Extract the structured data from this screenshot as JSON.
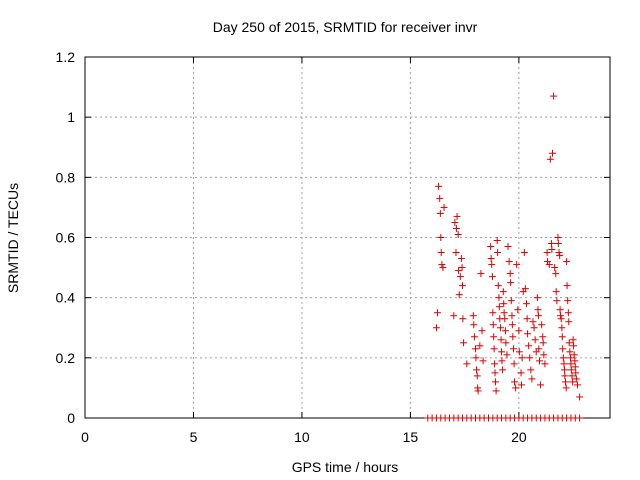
{
  "chart_data": {
    "type": "scatter",
    "title": "Day 250 of 2015, SRMTID for receiver invr",
    "xlabel": "GPS time / hours",
    "ylabel": "SRMTID / TECUs",
    "xlim": [
      0,
      24.2
    ],
    "ylim": [
      0,
      1.2
    ],
    "xticks": [
      0,
      5,
      10,
      15,
      20
    ],
    "yticks": [
      0,
      0.2,
      0.4,
      0.6,
      0.8,
      1.0,
      1.2
    ],
    "xtick_labels": [
      "0",
      "5",
      "10",
      "15",
      "20"
    ],
    "ytick_labels": [
      "0",
      "0.2",
      "0.4",
      "0.6",
      "0.8",
      "1",
      "1.2"
    ],
    "grid": true,
    "marker": "+",
    "color": "#e00000",
    "series": [
      {
        "name": "SRMTID",
        "points": [
          [
            16.2,
            0.3
          ],
          [
            16.25,
            0.35
          ],
          [
            16.3,
            0.77
          ],
          [
            16.35,
            0.73
          ],
          [
            16.38,
            0.68
          ],
          [
            16.4,
            0.6
          ],
          [
            16.42,
            0.55
          ],
          [
            16.45,
            0.51
          ],
          [
            16.5,
            0.5
          ],
          [
            16.55,
            0.7
          ],
          [
            17.0,
            0.34
          ],
          [
            17.05,
            0.65
          ],
          [
            17.1,
            0.55
          ],
          [
            17.12,
            0.63
          ],
          [
            17.15,
            0.67
          ],
          [
            17.2,
            0.61
          ],
          [
            17.22,
            0.49
          ],
          [
            17.25,
            0.41
          ],
          [
            17.3,
            0.47
          ],
          [
            17.35,
            0.53
          ],
          [
            17.38,
            0.5
          ],
          [
            17.4,
            0.44
          ],
          [
            17.42,
            0.33
          ],
          [
            17.45,
            0.25
          ],
          [
            17.6,
            0.18
          ],
          [
            17.9,
            0.34
          ],
          [
            17.92,
            0.31
          ],
          [
            17.95,
            0.27
          ],
          [
            18.0,
            0.23
          ],
          [
            18.02,
            0.2
          ],
          [
            18.05,
            0.16
          ],
          [
            18.08,
            0.14
          ],
          [
            18.1,
            0.1
          ],
          [
            18.12,
            0.09
          ],
          [
            18.2,
            0.24
          ],
          [
            18.25,
            0.48
          ],
          [
            18.3,
            0.29
          ],
          [
            18.35,
            0.19
          ],
          [
            18.7,
            0.57
          ],
          [
            18.72,
            0.53
          ],
          [
            18.75,
            0.51
          ],
          [
            18.78,
            0.47
          ],
          [
            18.8,
            0.35
          ],
          [
            18.82,
            0.31
          ],
          [
            18.84,
            0.27
          ],
          [
            18.86,
            0.23
          ],
          [
            18.88,
            0.18
          ],
          [
            18.9,
            0.15
          ],
          [
            18.92,
            0.12
          ],
          [
            18.95,
            0.09
          ],
          [
            19.0,
            0.59
          ],
          [
            19.02,
            0.55
          ],
          [
            19.05,
            0.44
          ],
          [
            19.08,
            0.4
          ],
          [
            19.1,
            0.37
          ],
          [
            19.12,
            0.33
          ],
          [
            19.15,
            0.3
          ],
          [
            19.18,
            0.26
          ],
          [
            19.2,
            0.22
          ],
          [
            19.22,
            0.19
          ],
          [
            19.25,
            0.16
          ],
          [
            19.28,
            0.42
          ],
          [
            19.3,
            0.38
          ],
          [
            19.32,
            0.35
          ],
          [
            19.35,
            0.33
          ],
          [
            19.38,
            0.29
          ],
          [
            19.4,
            0.25
          ],
          [
            19.45,
            0.21
          ],
          [
            19.5,
            0.57
          ],
          [
            19.55,
            0.52
          ],
          [
            19.6,
            0.48
          ],
          [
            19.62,
            0.45
          ],
          [
            19.65,
            0.39
          ],
          [
            19.68,
            0.34
          ],
          [
            19.7,
            0.31
          ],
          [
            19.72,
            0.27
          ],
          [
            19.75,
            0.23
          ],
          [
            19.78,
            0.18
          ],
          [
            19.8,
            0.12
          ],
          [
            19.85,
            0.1
          ],
          [
            19.9,
            0.51
          ],
          [
            19.95,
            0.36
          ],
          [
            20.0,
            0.29
          ],
          [
            20.02,
            0.22
          ],
          [
            20.1,
            0.15
          ],
          [
            20.12,
            0.11
          ],
          [
            20.15,
            0.2
          ],
          [
            20.2,
            0.42
          ],
          [
            20.25,
            0.55
          ],
          [
            20.3,
            0.43
          ],
          [
            20.35,
            0.38
          ],
          [
            20.38,
            0.33
          ],
          [
            20.4,
            0.28
          ],
          [
            20.45,
            0.24
          ],
          [
            20.5,
            0.2
          ],
          [
            20.55,
            0.16
          ],
          [
            20.6,
            0.13
          ],
          [
            20.65,
            0.32
          ],
          [
            20.7,
            0.3
          ],
          [
            20.75,
            0.26
          ],
          [
            20.8,
            0.22
          ],
          [
            20.85,
            0.4
          ],
          [
            20.88,
            0.36
          ],
          [
            20.9,
            0.34
          ],
          [
            20.92,
            0.23
          ],
          [
            20.95,
            0.19
          ],
          [
            21.0,
            0.11
          ],
          [
            21.05,
            0.31
          ],
          [
            21.1,
            0.27
          ],
          [
            21.12,
            0.25
          ],
          [
            21.15,
            0.21
          ],
          [
            21.2,
            0.18
          ],
          [
            21.3,
            0.55
          ],
          [
            21.32,
            0.52
          ],
          [
            21.4,
            0.51
          ],
          [
            21.45,
            0.86
          ],
          [
            21.5,
            0.58
          ],
          [
            21.52,
            0.56
          ],
          [
            21.55,
            0.88
          ],
          [
            21.6,
            1.07
          ],
          [
            21.65,
            0.5
          ],
          [
            21.7,
            0.48
          ],
          [
            21.72,
            0.42
          ],
          [
            21.75,
            0.39
          ],
          [
            21.8,
            0.6
          ],
          [
            21.82,
            0.58
          ],
          [
            21.85,
            0.55
          ],
          [
            21.88,
            0.54
          ],
          [
            21.9,
            0.36
          ],
          [
            21.92,
            0.34
          ],
          [
            21.95,
            0.33
          ],
          [
            21.98,
            0.3
          ],
          [
            22.0,
            0.27
          ],
          [
            22.02,
            0.23
          ],
          [
            22.05,
            0.2
          ],
          [
            22.08,
            0.18
          ],
          [
            22.1,
            0.16
          ],
          [
            22.12,
            0.14
          ],
          [
            22.15,
            0.12
          ],
          [
            22.18,
            0.1
          ],
          [
            22.2,
            0.52
          ],
          [
            22.22,
            0.44
          ],
          [
            22.25,
            0.39
          ],
          [
            22.28,
            0.35
          ],
          [
            22.3,
            0.32
          ],
          [
            22.32,
            0.25
          ],
          [
            22.35,
            0.22
          ],
          [
            22.38,
            0.2
          ],
          [
            22.4,
            0.18
          ],
          [
            22.42,
            0.16
          ],
          [
            22.45,
            0.14
          ],
          [
            22.48,
            0.12
          ],
          [
            22.5,
            0.26
          ],
          [
            22.52,
            0.24
          ],
          [
            22.55,
            0.21
          ],
          [
            22.58,
            0.19
          ],
          [
            22.6,
            0.17
          ],
          [
            22.62,
            0.15
          ],
          [
            22.65,
            0.13
          ],
          [
            22.7,
            0.11
          ],
          [
            22.8,
            0.07
          ],
          [
            15.8,
            0
          ],
          [
            16.0,
            0
          ],
          [
            16.2,
            0
          ],
          [
            16.4,
            0
          ],
          [
            16.6,
            0
          ],
          [
            16.8,
            0
          ],
          [
            17.0,
            0
          ],
          [
            17.2,
            0
          ],
          [
            17.4,
            0
          ],
          [
            17.6,
            0
          ],
          [
            17.8,
            0
          ],
          [
            18.0,
            0
          ],
          [
            18.2,
            0
          ],
          [
            18.4,
            0
          ],
          [
            18.6,
            0
          ],
          [
            18.8,
            0
          ],
          [
            19.0,
            0
          ],
          [
            19.2,
            0
          ],
          [
            19.4,
            0
          ],
          [
            19.6,
            0
          ],
          [
            19.8,
            0
          ],
          [
            20.0,
            0
          ],
          [
            20.2,
            0
          ],
          [
            20.4,
            0
          ],
          [
            20.6,
            0
          ],
          [
            20.8,
            0
          ],
          [
            21.0,
            0
          ],
          [
            21.2,
            0
          ],
          [
            21.4,
            0
          ],
          [
            21.6,
            0
          ],
          [
            21.8,
            0
          ],
          [
            22.0,
            0
          ],
          [
            22.2,
            0
          ],
          [
            22.4,
            0
          ],
          [
            22.6,
            0
          ],
          [
            22.8,
            0
          ]
        ]
      }
    ]
  }
}
